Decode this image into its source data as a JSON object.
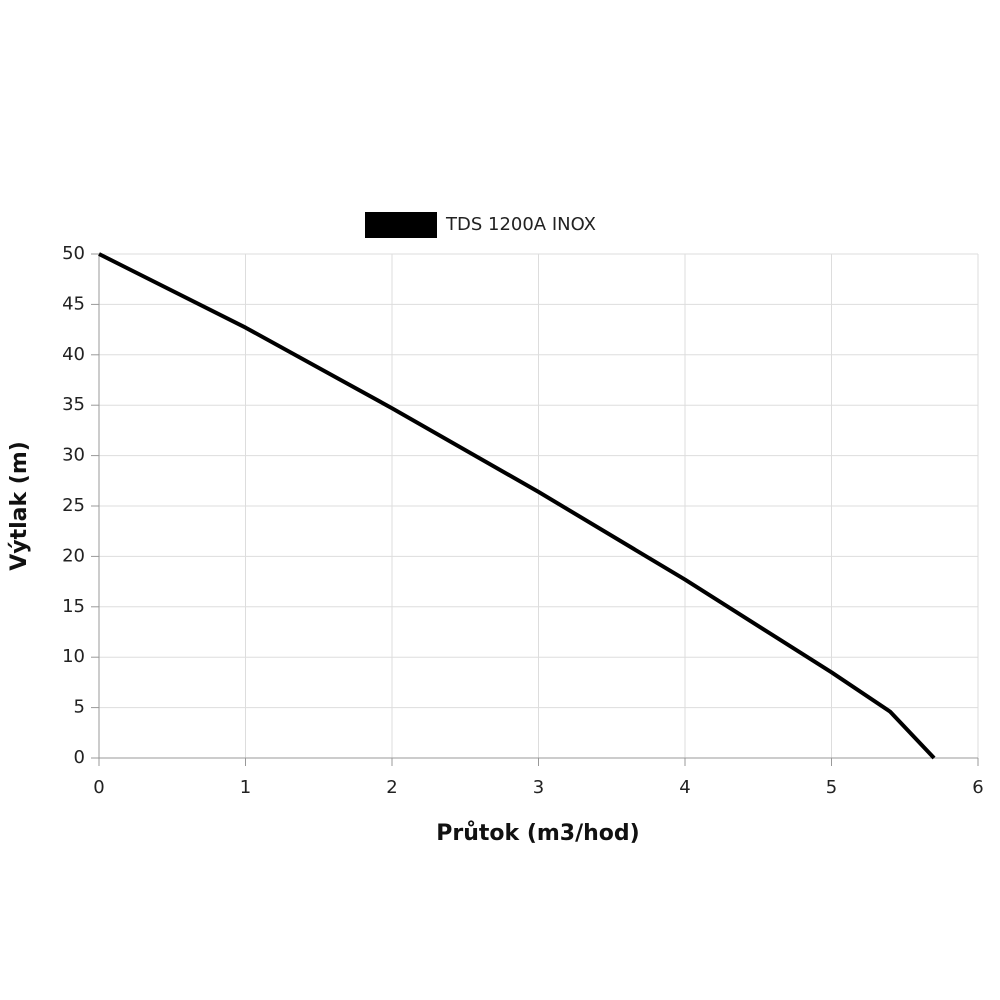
{
  "chart_data": {
    "type": "line",
    "x_label": "Průtok (m3/hod)",
    "y_label": "Výtlak (m)",
    "x": [
      0,
      1,
      2,
      3,
      4,
      5,
      5.4,
      5.7
    ],
    "series": [
      {
        "name": "TDS 1200A INOX",
        "color": "#000000",
        "values": [
          50,
          42.7,
          34.7,
          26.4,
          17.7,
          8.5,
          4.6,
          0
        ]
      }
    ],
    "xlim": [
      0,
      6
    ],
    "xticks": [
      0,
      1,
      2,
      3,
      4,
      5,
      6
    ],
    "ylim": [
      0,
      50
    ],
    "yticks": [
      0,
      5,
      10,
      15,
      20,
      25,
      30,
      35,
      40,
      45,
      50
    ],
    "grid": true,
    "legend": "top"
  }
}
